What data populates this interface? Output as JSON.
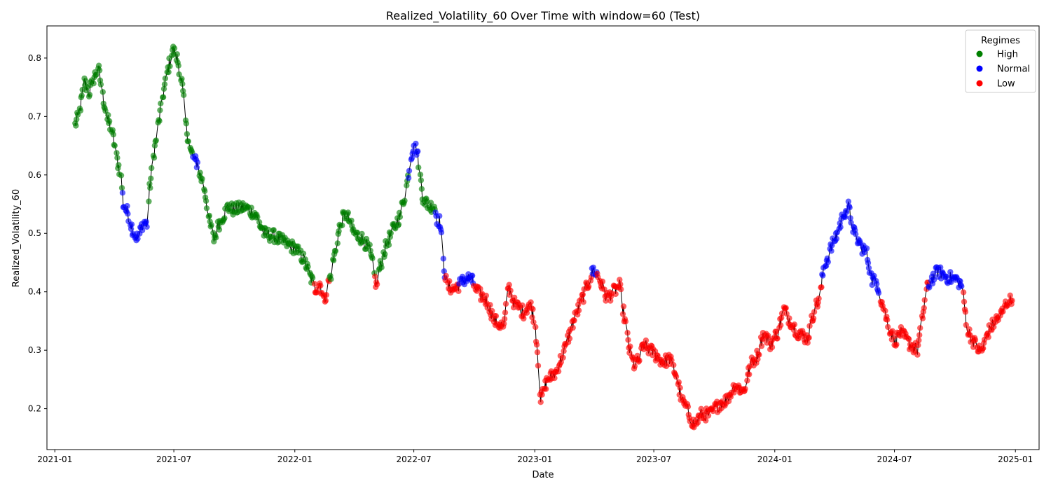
{
  "chart_data": {
    "type": "scatter",
    "title": "Realized_Volatility_60 Over Time with window=60 (Test)",
    "xlabel": "Date",
    "ylabel": "Realized_Volatility_60",
    "x_start": "2021-02-01",
    "x_end": "2024-12-27",
    "xlim": [
      "2020-12-20",
      "2025-02-06"
    ],
    "ylim": [
      0.13,
      0.855
    ],
    "x_ticks": [
      "2021-01",
      "2021-07",
      "2022-01",
      "2022-07",
      "2023-01",
      "2023-07",
      "2024-01",
      "2024-07",
      "2025-01"
    ],
    "y_ticks": [
      0.2,
      0.3,
      0.4,
      0.5,
      0.6,
      0.7,
      0.8
    ],
    "grid": false,
    "line_color": "#000000",
    "legend": {
      "title": "Regimes",
      "placement": "top-right",
      "entries": [
        {
          "name": "High",
          "color": "#008000"
        },
        {
          "name": "Normal",
          "color": "#0000ff"
        },
        {
          "name": "Low",
          "color": "#ff0000"
        }
      ]
    },
    "series_anchors": [
      [
        "2021-02-01",
        0.685,
        "High"
      ],
      [
        "2021-02-08",
        0.71,
        "High"
      ],
      [
        "2021-02-15",
        0.76,
        "High"
      ],
      [
        "2021-02-22",
        0.74,
        "High"
      ],
      [
        "2021-03-01",
        0.765,
        "High"
      ],
      [
        "2021-03-08",
        0.785,
        "High"
      ],
      [
        "2021-03-15",
        0.735,
        "High"
      ],
      [
        "2021-03-22",
        0.695,
        "High"
      ],
      [
        "2021-03-29",
        0.675,
        "High"
      ],
      [
        "2021-04-05",
        0.63,
        "High"
      ],
      [
        "2021-04-12",
        0.595,
        "High"
      ],
      [
        "2021-04-15",
        0.55,
        "Normal"
      ],
      [
        "2021-04-22",
        0.535,
        "Normal"
      ],
      [
        "2021-05-01",
        0.5,
        "Normal"
      ],
      [
        "2021-05-08",
        0.49,
        "Normal"
      ],
      [
        "2021-05-15",
        0.52,
        "Normal"
      ],
      [
        "2021-05-22",
        0.515,
        "Normal"
      ],
      [
        "2021-05-25",
        0.575,
        "High"
      ],
      [
        "2021-06-01",
        0.64,
        "High"
      ],
      [
        "2021-06-08",
        0.69,
        "High"
      ],
      [
        "2021-06-15",
        0.74,
        "High"
      ],
      [
        "2021-06-22",
        0.78,
        "High"
      ],
      [
        "2021-06-29",
        0.815,
        "High"
      ],
      [
        "2021-07-06",
        0.8,
        "High"
      ],
      [
        "2021-07-13",
        0.76,
        "High"
      ],
      [
        "2021-07-20",
        0.68,
        "High"
      ],
      [
        "2021-07-27",
        0.64,
        "High"
      ],
      [
        "2021-08-01",
        0.625,
        "Normal"
      ],
      [
        "2021-08-06",
        0.62,
        "Normal"
      ],
      [
        "2021-08-10",
        0.6,
        "High"
      ],
      [
        "2021-08-17",
        0.575,
        "High"
      ],
      [
        "2021-08-24",
        0.52,
        "High"
      ],
      [
        "2021-08-31",
        0.49,
        "High"
      ],
      [
        "2021-09-07",
        0.515,
        "High"
      ],
      [
        "2021-09-14",
        0.53,
        "High"
      ],
      [
        "2021-09-21",
        0.545,
        "High"
      ],
      [
        "2021-10-01",
        0.54,
        "High"
      ],
      [
        "2021-10-15",
        0.545,
        "High"
      ],
      [
        "2021-11-01",
        0.535,
        "High"
      ],
      [
        "2021-11-15",
        0.5,
        "High"
      ],
      [
        "2021-12-01",
        0.495,
        "High"
      ],
      [
        "2021-12-15",
        0.485,
        "High"
      ],
      [
        "2022-01-01",
        0.475,
        "High"
      ],
      [
        "2022-01-15",
        0.455,
        "High"
      ],
      [
        "2022-01-25",
        0.425,
        "High"
      ],
      [
        "2022-02-01",
        0.405,
        "Low"
      ],
      [
        "2022-02-08",
        0.415,
        "Low"
      ],
      [
        "2022-02-15",
        0.385,
        "Low"
      ],
      [
        "2022-02-20",
        0.41,
        "Low"
      ],
      [
        "2022-02-25",
        0.43,
        "High"
      ],
      [
        "2022-03-05",
        0.48,
        "High"
      ],
      [
        "2022-03-12",
        0.52,
        "High"
      ],
      [
        "2022-03-20",
        0.535,
        "High"
      ],
      [
        "2022-04-01",
        0.5,
        "High"
      ],
      [
        "2022-04-15",
        0.49,
        "High"
      ],
      [
        "2022-04-25",
        0.47,
        "High"
      ],
      [
        "2022-05-01",
        0.435,
        "High"
      ],
      [
        "2022-05-05",
        0.41,
        "Low"
      ],
      [
        "2022-05-10",
        0.44,
        "High"
      ],
      [
        "2022-05-20",
        0.48,
        "High"
      ],
      [
        "2022-06-01",
        0.51,
        "High"
      ],
      [
        "2022-06-10",
        0.53,
        "High"
      ],
      [
        "2022-06-20",
        0.58,
        "High"
      ],
      [
        "2022-06-25",
        0.62,
        "Normal"
      ],
      [
        "2022-07-01",
        0.655,
        "Normal"
      ],
      [
        "2022-07-06",
        0.64,
        "Normal"
      ],
      [
        "2022-07-10",
        0.605,
        "High"
      ],
      [
        "2022-07-15",
        0.56,
        "High"
      ],
      [
        "2022-07-25",
        0.545,
        "High"
      ],
      [
        "2022-08-01",
        0.55,
        "High"
      ],
      [
        "2022-08-05",
        0.525,
        "Normal"
      ],
      [
        "2022-08-10",
        0.52,
        "Normal"
      ],
      [
        "2022-08-15",
        0.45,
        "Normal"
      ],
      [
        "2022-08-20",
        0.41,
        "Low"
      ],
      [
        "2022-09-01",
        0.405,
        "Low"
      ],
      [
        "2022-09-15",
        0.42,
        "Normal"
      ],
      [
        "2022-09-25",
        0.425,
        "Normal"
      ],
      [
        "2022-10-05",
        0.4,
        "Low"
      ],
      [
        "2022-10-20",
        0.385,
        "Low"
      ],
      [
        "2022-11-01",
        0.35,
        "Low"
      ],
      [
        "2022-11-15",
        0.34,
        "Low"
      ],
      [
        "2022-11-22",
        0.41,
        "Low"
      ],
      [
        "2022-12-01",
        0.38,
        "Low"
      ],
      [
        "2022-12-15",
        0.365,
        "Low"
      ],
      [
        "2022-12-25",
        0.38,
        "Low"
      ],
      [
        "2023-01-01",
        0.35,
        "Low"
      ],
      [
        "2023-01-05",
        0.3,
        "Low"
      ],
      [
        "2023-01-10",
        0.215,
        "Low"
      ],
      [
        "2023-01-20",
        0.25,
        "Low"
      ],
      [
        "2023-02-01",
        0.26,
        "Low"
      ],
      [
        "2023-02-15",
        0.3,
        "Low"
      ],
      [
        "2023-03-01",
        0.35,
        "Low"
      ],
      [
        "2023-03-15",
        0.39,
        "Low"
      ],
      [
        "2023-03-25",
        0.42,
        "Low"
      ],
      [
        "2023-04-01",
        0.44,
        "Normal"
      ],
      [
        "2023-04-10",
        0.42,
        "Low"
      ],
      [
        "2023-04-20",
        0.39,
        "Low"
      ],
      [
        "2023-05-01",
        0.4,
        "Low"
      ],
      [
        "2023-05-10",
        0.41,
        "Low"
      ],
      [
        "2023-05-18",
        0.35,
        "Low"
      ],
      [
        "2023-05-25",
        0.3,
        "Low"
      ],
      [
        "2023-06-01",
        0.275,
        "Low"
      ],
      [
        "2023-06-10",
        0.285,
        "Low"
      ],
      [
        "2023-06-15",
        0.31,
        "Low"
      ],
      [
        "2023-07-01",
        0.295,
        "Low"
      ],
      [
        "2023-07-15",
        0.28,
        "Low"
      ],
      [
        "2023-07-25",
        0.285,
        "Low"
      ],
      [
        "2023-08-05",
        0.255,
        "Low"
      ],
      [
        "2023-08-12",
        0.215,
        "Low"
      ],
      [
        "2023-08-20",
        0.2,
        "Low"
      ],
      [
        "2023-09-01",
        0.17,
        "Low"
      ],
      [
        "2023-09-10",
        0.19,
        "Low"
      ],
      [
        "2023-09-25",
        0.19,
        "Low"
      ],
      [
        "2023-10-10",
        0.21,
        "Low"
      ],
      [
        "2023-10-20",
        0.215,
        "Low"
      ],
      [
        "2023-11-01",
        0.24,
        "Low"
      ],
      [
        "2023-11-15",
        0.23,
        "Low"
      ],
      [
        "2023-11-25",
        0.275,
        "Low"
      ],
      [
        "2023-12-05",
        0.29,
        "Low"
      ],
      [
        "2023-12-15",
        0.33,
        "Low"
      ],
      [
        "2023-12-25",
        0.31,
        "Low"
      ],
      [
        "2024-01-05",
        0.33,
        "Low"
      ],
      [
        "2024-01-15",
        0.37,
        "Low"
      ],
      [
        "2024-01-25",
        0.35,
        "Low"
      ],
      [
        "2024-02-05",
        0.33,
        "Low"
      ],
      [
        "2024-02-20",
        0.32,
        "Low"
      ],
      [
        "2024-03-01",
        0.37,
        "Low"
      ],
      [
        "2024-03-10",
        0.39,
        "Low"
      ],
      [
        "2024-03-15",
        0.44,
        "Normal"
      ],
      [
        "2024-03-25",
        0.47,
        "Normal"
      ],
      [
        "2024-04-05",
        0.5,
        "Normal"
      ],
      [
        "2024-04-15",
        0.535,
        "Normal"
      ],
      [
        "2024-04-22",
        0.545,
        "Normal"
      ],
      [
        "2024-05-01",
        0.5,
        "Normal"
      ],
      [
        "2024-05-10",
        0.48,
        "Normal"
      ],
      [
        "2024-05-20",
        0.465,
        "Normal"
      ],
      [
        "2024-05-28",
        0.42,
        "Normal"
      ],
      [
        "2024-06-05",
        0.415,
        "Normal"
      ],
      [
        "2024-06-10",
        0.39,
        "Low"
      ],
      [
        "2024-06-20",
        0.35,
        "Low"
      ],
      [
        "2024-07-01",
        0.315,
        "Low"
      ],
      [
        "2024-07-10",
        0.33,
        "Low"
      ],
      [
        "2024-07-25",
        0.31,
        "Low"
      ],
      [
        "2024-08-05",
        0.3,
        "Low"
      ],
      [
        "2024-08-12",
        0.35,
        "Low"
      ],
      [
        "2024-08-18",
        0.4,
        "Low"
      ],
      [
        "2024-08-25",
        0.42,
        "Normal"
      ],
      [
        "2024-09-05",
        0.435,
        "Normal"
      ],
      [
        "2024-09-20",
        0.425,
        "Normal"
      ],
      [
        "2024-10-05",
        0.42,
        "Normal"
      ],
      [
        "2024-10-12",
        0.41,
        "Normal"
      ],
      [
        "2024-10-15",
        0.38,
        "Low"
      ],
      [
        "2024-10-20",
        0.335,
        "Low"
      ],
      [
        "2024-11-01",
        0.31,
        "Low"
      ],
      [
        "2024-11-10",
        0.295,
        "Low"
      ],
      [
        "2024-11-20",
        0.33,
        "Low"
      ],
      [
        "2024-12-01",
        0.35,
        "Low"
      ],
      [
        "2024-12-10",
        0.36,
        "Low"
      ],
      [
        "2024-12-20",
        0.385,
        "Low"
      ],
      [
        "2024-12-27",
        0.385,
        "Low"
      ]
    ]
  }
}
